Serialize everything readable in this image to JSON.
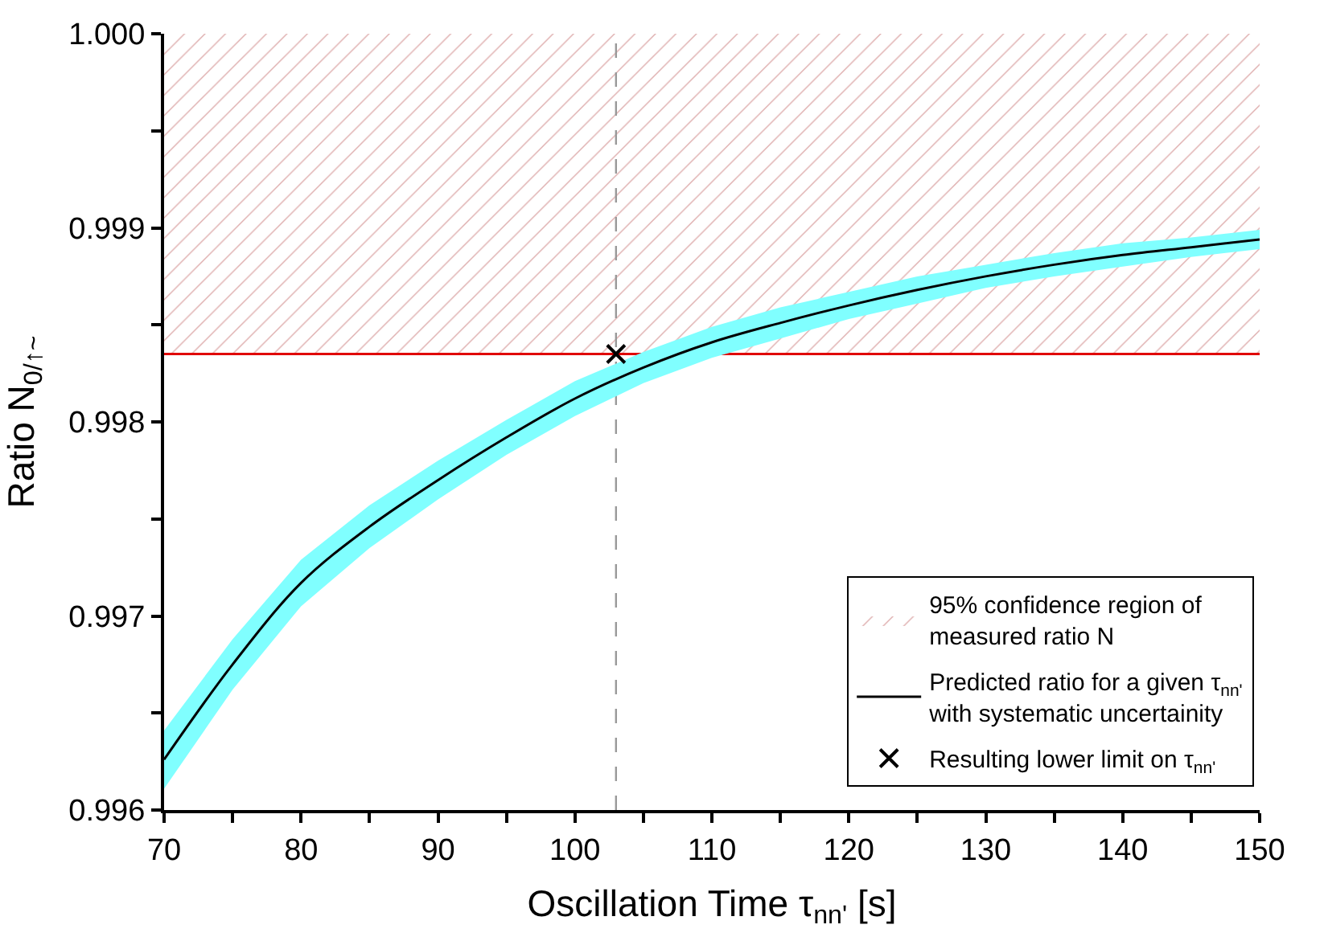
{
  "chart_data": {
    "type": "line",
    "xlabel": "Oscillation Time τ$_{nn'}$ [s]",
    "ylabel": "Ratio N$_{0/↑~}$",
    "xlim": [
      70,
      150
    ],
    "xticks": [
      70,
      {
        "value": 75,
        "label": null
      },
      80,
      {
        "value": 85,
        "label": null
      },
      90,
      {
        "value": 95,
        "label": null
      },
      100,
      {
        "value": 105,
        "label": null
      },
      110,
      {
        "value": 115,
        "label": null
      },
      120,
      {
        "value": 125,
        "label": null
      },
      130,
      {
        "value": 135,
        "label": null
      },
      140,
      {
        "value": 145,
        "label": null
      },
      150
    ],
    "ylim": [
      0.996,
      1.0
    ],
    "yticks": [
      0.996,
      {
        "value": 0.9965,
        "label": null
      },
      0.997,
      {
        "value": 0.9975,
        "label": null
      },
      0.998,
      {
        "value": 0.9985,
        "label": null
      },
      0.999,
      {
        "value": 0.9995,
        "label": null
      },
      {
        "value": 1.0,
        "label": "1.000"
      }
    ],
    "legend": "bottom right",
    "bands": [
      {
        "axis": "y",
        "from": 0.99835,
        "to": 1.0,
        "label": "95% confidence region of\nmeasured ratio N",
        "color": "#c06060"
      }
    ],
    "ref_lines": [
      {
        "axis": "y",
        "value": 0.99835,
        "color": "#e00000"
      },
      {
        "axis": "x",
        "value": 103,
        "color": "#999999",
        "line_style": "dashed"
      }
    ],
    "series": [
      {
        "name": "Predicted ratio for a given τ$_{nn'}$\nwith systematic uncertainity",
        "color": "#000000",
        "x": [
          70,
          75,
          80,
          85,
          90,
          95,
          100,
          105,
          110,
          115,
          120,
          125,
          130,
          135,
          140,
          145,
          150
        ],
        "values": [
          0.99626,
          0.99675,
          0.99717,
          0.99746,
          0.9977,
          0.99792,
          0.99812,
          0.99828,
          0.99841,
          0.99851,
          0.9986,
          0.99868,
          0.99875,
          0.99881,
          0.99886,
          0.9989,
          0.99894
        ],
        "lower": [
          0.99611,
          0.99662,
          0.99705,
          0.99735,
          0.9976,
          0.99783,
          0.99803,
          0.9982,
          0.99833,
          0.99843,
          0.99853,
          0.99861,
          0.99869,
          0.99875,
          0.9988,
          0.99885,
          0.99889
        ],
        "upper": [
          0.99641,
          0.99688,
          0.99729,
          0.99757,
          0.9978,
          0.99801,
          0.99821,
          0.99836,
          0.99849,
          0.99859,
          0.99867,
          0.99875,
          0.99881,
          0.99887,
          0.99892,
          0.99895,
          0.99899
        ]
      },
      {
        "type": "scatter",
        "name": "Resulting lower limit on τ$_{nn'}$",
        "color": "#000000",
        "marker": "cross",
        "x": [
          103
        ],
        "values": [
          0.99835
        ]
      }
    ]
  }
}
